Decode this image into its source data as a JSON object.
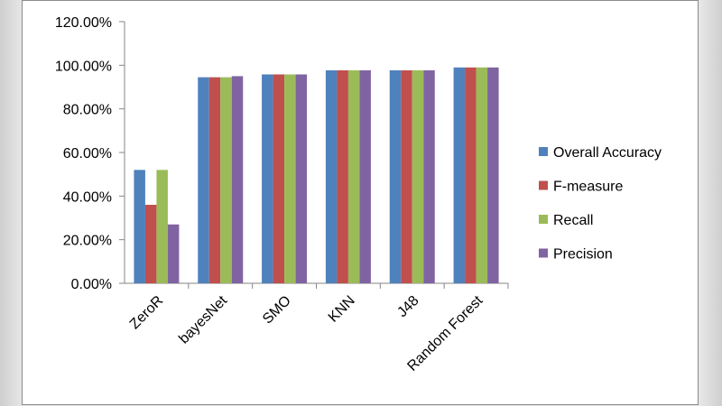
{
  "chart_data": {
    "type": "bar",
    "categories": [
      "ZeroR",
      "bayesNet",
      "SMO",
      "KNN",
      "J48",
      "Random Forest"
    ],
    "series": [
      {
        "name": "Overall Accuracy",
        "color": "#4f81bd",
        "values": [
          0.52,
          0.945,
          0.958,
          0.977,
          0.977,
          0.99
        ]
      },
      {
        "name": "F-measure",
        "color": "#c0504d",
        "values": [
          0.36,
          0.945,
          0.958,
          0.977,
          0.977,
          0.99
        ]
      },
      {
        "name": "Recall",
        "color": "#9bbb59",
        "values": [
          0.52,
          0.945,
          0.958,
          0.977,
          0.977,
          0.99
        ]
      },
      {
        "name": "Precision",
        "color": "#8064a2",
        "values": [
          0.27,
          0.95,
          0.958,
          0.977,
          0.977,
          0.99
        ]
      }
    ],
    "y_ticks": [
      "0.00%",
      "20.00%",
      "40.00%",
      "60.00%",
      "80.00%",
      "100.00%",
      "120.00%"
    ],
    "ylim": [
      0,
      1.2
    ],
    "grid": false,
    "legend_position": "right"
  }
}
